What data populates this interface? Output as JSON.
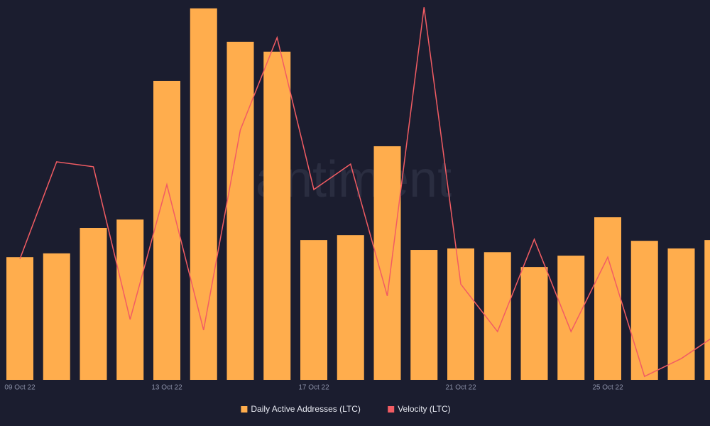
{
  "chart_data": {
    "type": "bar_line",
    "watermark": "santiment",
    "categories": [
      "09 Oct 22",
      null,
      null,
      null,
      "13 Oct 22",
      null,
      null,
      null,
      "17 Oct 22",
      null,
      null,
      null,
      "21 Oct 22",
      null,
      null,
      null,
      "25 Oct 22",
      null,
      null,
      null
    ],
    "series": [
      {
        "name": "Daily Active Addresses (LTC)",
        "color": "#ffad4d",
        "type": "bar",
        "values": [
          32.3,
          33.3,
          40,
          42.2,
          78.7,
          97.8,
          89,
          86.4,
          36.8,
          38.1,
          61.5,
          34.2,
          34.6,
          33.6,
          29.7,
          32.7,
          42.8,
          36.6,
          34.6,
          36.8
        ]
      },
      {
        "name": "Velocity (LTC)",
        "color": "#f25c63",
        "type": "line",
        "axis": "y2",
        "values": [
          31.8,
          57.4,
          56.1,
          15.9,
          51.4,
          13.1,
          65.8,
          90.1,
          50.1,
          56.8,
          22.1,
          98.1,
          25.2,
          12.7,
          37,
          12.7,
          32.3,
          0.9,
          5.6,
          12.1
        ]
      }
    ],
    "ylim": [
      0,
      100
    ],
    "y2lim": [
      0,
      100
    ]
  }
}
